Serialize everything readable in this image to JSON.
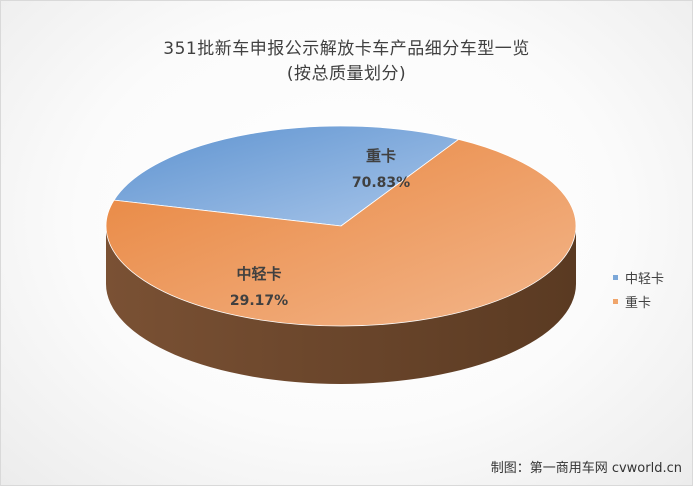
{
  "chart_data": {
    "type": "pie",
    "style": "3d",
    "title": "351批新车申报公示解放卡车产品细分车型一览",
    "subtitle": "(按总质量划分)",
    "slices": [
      {
        "label": "中轻卡",
        "value": 29.17,
        "value_label": "29.17%",
        "color": "#7ba7d8"
      },
      {
        "label": "重卡",
        "value": 70.83,
        "value_label": "70.83%",
        "color": "#f0a56b"
      }
    ],
    "legend": {
      "position": "right",
      "items": [
        "中轻卡",
        "重卡"
      ]
    }
  },
  "credit": "制图：第一商用车网 cvworld.cn"
}
